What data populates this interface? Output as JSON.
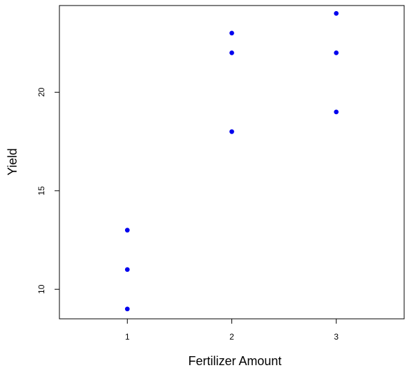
{
  "chart_data": {
    "type": "scatter",
    "title": "",
    "xlabel": "Fertilizer Amount",
    "ylabel": "Yield",
    "xlim": [
      0.35,
      3.65
    ],
    "ylim": [
      8.5,
      24.4
    ],
    "x_ticks": [
      1,
      2,
      3
    ],
    "x_tick_labels": [
      "1",
      "2",
      "3"
    ],
    "y_ticks": [
      10,
      15,
      20
    ],
    "y_tick_labels": [
      "10",
      "15",
      "20"
    ],
    "grid": false,
    "series": [
      {
        "points": [
          {
            "x": 1,
            "y": 9
          },
          {
            "x": 1,
            "y": 11
          },
          {
            "x": 1,
            "y": 13
          },
          {
            "x": 2,
            "y": 18
          },
          {
            "x": 2,
            "y": 22
          },
          {
            "x": 2,
            "y": 23
          },
          {
            "x": 3,
            "y": 19
          },
          {
            "x": 3,
            "y": 22
          },
          {
            "x": 3,
            "y": 24
          }
        ],
        "color": "#0000ee"
      }
    ]
  }
}
